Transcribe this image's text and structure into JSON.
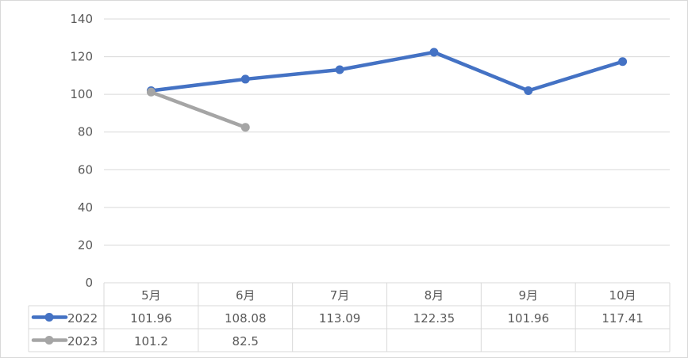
{
  "chart_data": {
    "type": "line",
    "categories": [
      "5月",
      "6月",
      "7月",
      "8月",
      "9月",
      "10月"
    ],
    "series": [
      {
        "name": "2022",
        "color": "#4472C4",
        "values": [
          101.96,
          108.08,
          113.09,
          122.35,
          101.96,
          117.41
        ],
        "labels": [
          "101.96",
          "108.08",
          "113.09",
          "122.35",
          "101.96",
          "117.41"
        ]
      },
      {
        "name": "2023",
        "color": "#A5A5A5",
        "values": [
          101.2,
          82.5,
          null,
          null,
          null,
          null
        ],
        "labels": [
          "101.2",
          "82.5",
          "",
          "",
          "",
          ""
        ]
      }
    ],
    "yticks": [
      "0",
      "20",
      "40",
      "60",
      "80",
      "100",
      "120",
      "140"
    ],
    "ylim": [
      0,
      140
    ],
    "grid": true,
    "data_table": true,
    "legend": "in data table"
  }
}
